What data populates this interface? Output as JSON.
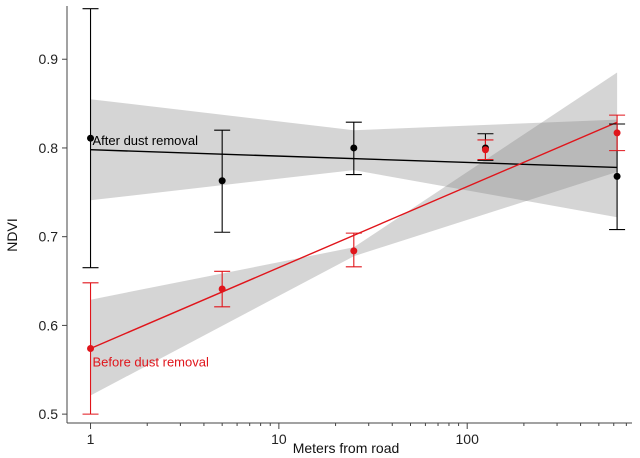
{
  "chart_data": {
    "type": "scatter",
    "title": "",
    "xlabel": "Meters from road",
    "ylabel": "NDVI",
    "xscale": "log",
    "xlim": [
      0.75,
      750
    ],
    "ylim": [
      0.49,
      0.96
    ],
    "xticks": [
      1,
      10,
      100
    ],
    "xtick_labels": [
      "1",
      "10",
      "100"
    ],
    "yticks": [
      0.5,
      0.6,
      0.7,
      0.8,
      0.9
    ],
    "ytick_labels": [
      "0.5",
      "0.6",
      "0.7",
      "0.8",
      "0.9"
    ],
    "grid": false,
    "series": [
      {
        "name": "After dust removal",
        "color": "#000000",
        "x": [
          1,
          5,
          25,
          125,
          625
        ],
        "y": [
          0.811,
          0.763,
          0.8,
          0.8,
          0.768
        ],
        "err_low": [
          0.665,
          0.705,
          0.77,
          0.786,
          0.708
        ],
        "err_high": [
          0.957,
          0.82,
          0.829,
          0.816,
          0.827
        ],
        "fit": {
          "x": [
            1,
            625
          ],
          "y": [
            0.798,
            0.778
          ]
        },
        "ci_low": {
          "x": [
            1,
            25,
            625
          ],
          "y": [
            0.741,
            0.775,
            0.722
          ]
        },
        "ci_high": {
          "x": [
            1,
            25,
            625
          ],
          "y": [
            0.855,
            0.82,
            0.832
          ]
        }
      },
      {
        "name": "Before dust removal",
        "color": "#e0151b",
        "x": [
          1,
          5,
          25,
          125,
          625
        ],
        "y": [
          0.574,
          0.641,
          0.684,
          0.798,
          0.817
        ],
        "err_low": [
          0.5,
          0.621,
          0.666,
          0.787,
          0.797
        ],
        "err_high": [
          0.648,
          0.661,
          0.704,
          0.809,
          0.837
        ],
        "fit": {
          "x": [
            1,
            625
          ],
          "y": [
            0.574,
            0.829
          ]
        },
        "ci_low": {
          "x": [
            1,
            25,
            625
          ],
          "y": [
            0.521,
            0.678,
            0.773
          ]
        },
        "ci_high": {
          "x": [
            1,
            25,
            625
          ],
          "y": [
            0.629,
            0.688,
            0.885
          ]
        }
      }
    ]
  }
}
